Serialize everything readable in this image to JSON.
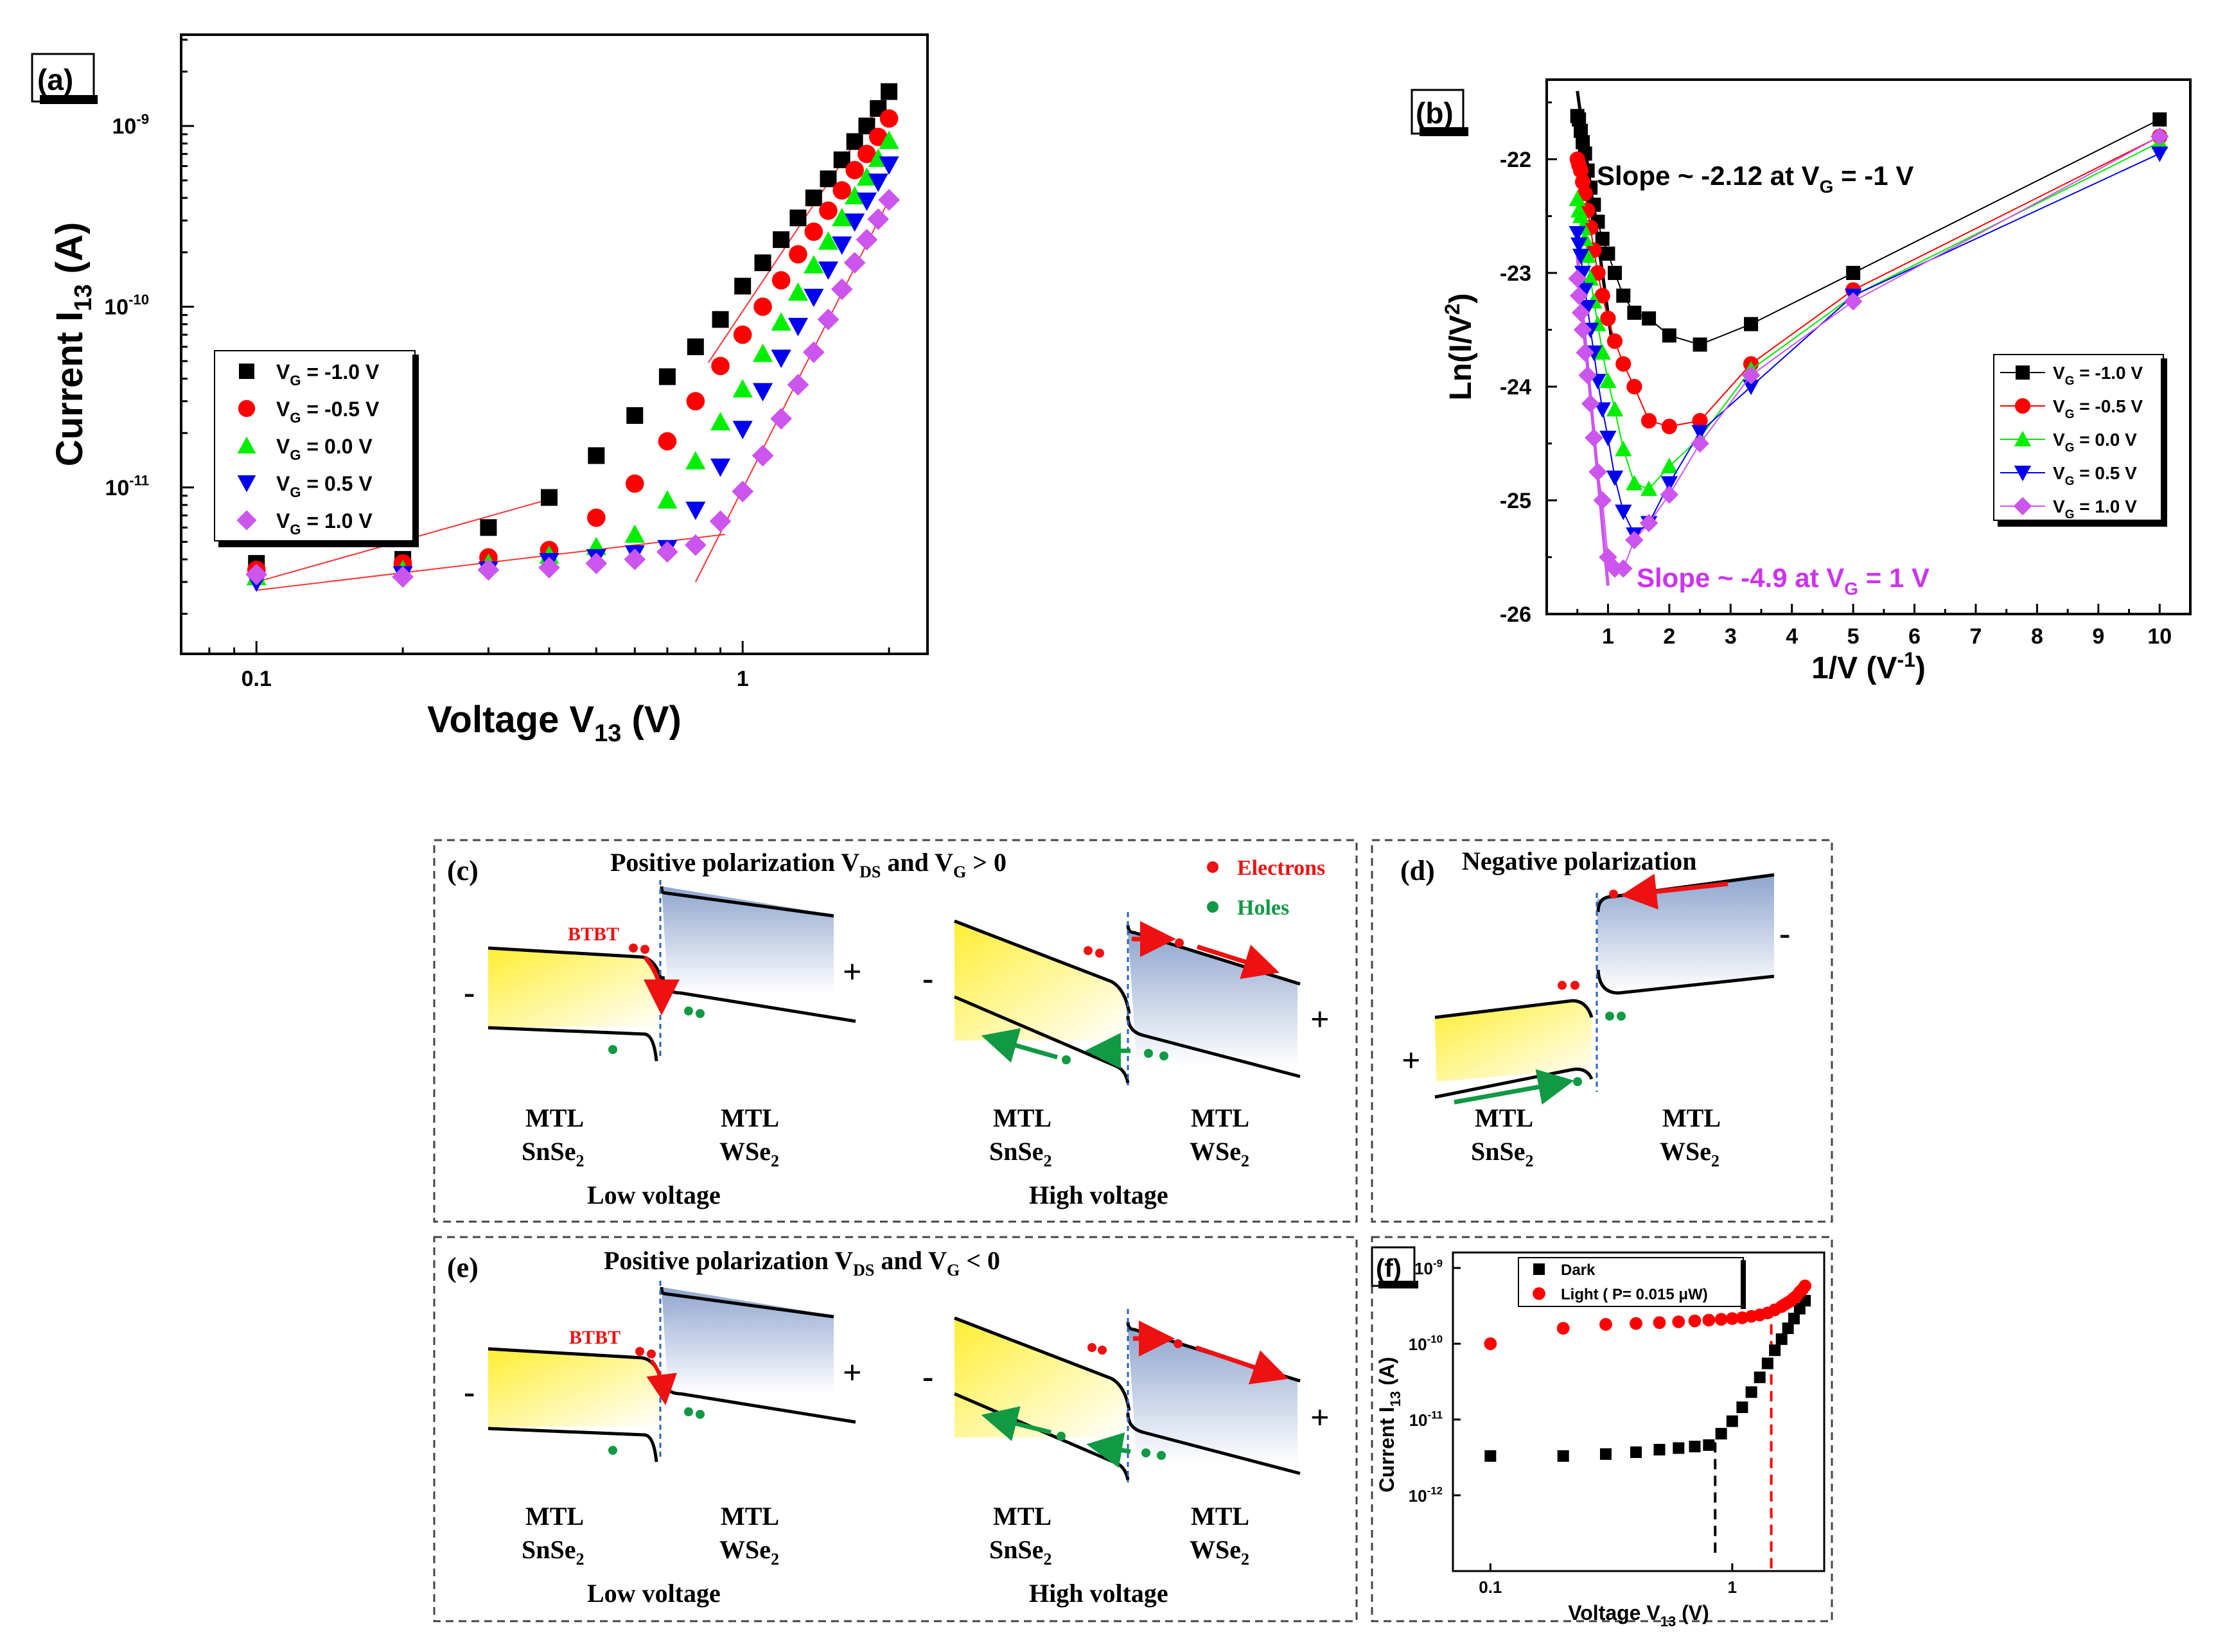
{
  "panel_labels": {
    "a": "(a)",
    "b": "(b)",
    "c": "(c)",
    "d": "(d)",
    "e": "(e)",
    "f": "(f)"
  },
  "colors": {
    "m10": "#000000",
    "m05": "#ff0000",
    "p00": "#00ee00",
    "p05": "#0000ee",
    "p10": "#cc55ee"
  },
  "chart_data": [
    {
      "id": "a",
      "type": "scatter",
      "xscale": "log",
      "yscale": "log",
      "xlabel_main": "Voltage V",
      "xlabel_sub": "13",
      "xlabel_unit": " (V)",
      "ylabel_main": "Current I",
      "ylabel_sub": "13",
      "ylabel_unit": " (A)",
      "xlim": [
        0.07,
        2.4
      ],
      "ylim": [
        1.2e-12,
        3.2e-09
      ],
      "xticks": [
        {
          "v": 0.1,
          "label": "0.1"
        },
        {
          "v": 1,
          "label": "1"
        }
      ],
      "yticks": [
        {
          "v": 1e-11,
          "label": "10-11"
        },
        {
          "v": 1e-10,
          "label": "10-10"
        },
        {
          "v": 1e-09,
          "label": "10-9"
        }
      ],
      "x": [
        0.1,
        0.2,
        0.3,
        0.4,
        0.5,
        0.6,
        0.7,
        0.8,
        0.9,
        1.0,
        1.1,
        1.2,
        1.3,
        1.4,
        1.5,
        1.6,
        1.7,
        1.8,
        1.9,
        2.0
      ],
      "series": [
        {
          "name": "V_G = -1.0 V",
          "label": "V",
          "sub": "G",
          "val": " = -1.0 V",
          "marker": "square",
          "color": "#000000",
          "values": [
            3.8e-12,
            4e-12,
            6e-12,
            8.8e-12,
            1.5e-11,
            2.5e-11,
            4.1e-11,
            6e-11,
            8.5e-11,
            1.3e-10,
            1.75e-10,
            2.35e-10,
            3.1e-10,
            4e-10,
            5.1e-10,
            6.5e-10,
            8.2e-10,
            1e-09,
            1.25e-09,
            1.55e-09
          ]
        },
        {
          "name": "V_G = -0.5 V",
          "label": "V",
          "sub": "G",
          "val": " = -0.5 V",
          "marker": "circle",
          "color": "#ff0000",
          "values": [
            3.5e-12,
            3.8e-12,
            4.1e-12,
            4.5e-12,
            6.8e-12,
            1.05e-11,
            1.8e-11,
            3e-11,
            4.7e-11,
            7e-11,
            1e-10,
            1.4e-10,
            1.95e-10,
            2.6e-10,
            3.4e-10,
            4.4e-10,
            5.7e-10,
            7e-10,
            8.7e-10,
            1.1e-09
          ]
        },
        {
          "name": "V_G = 0.0 V",
          "label": "V",
          "sub": "G",
          "val": " =  0.0 V",
          "marker": "triangle-up",
          "color": "#00ee00",
          "values": [
            3.2e-12,
            3.5e-12,
            3.8e-12,
            4.2e-12,
            4.7e-12,
            5.5e-12,
            8.5e-12,
            1.4e-11,
            2.3e-11,
            3.5e-11,
            5.5e-11,
            8.2e-11,
            1.2e-10,
            1.7e-10,
            2.3e-10,
            3.1e-10,
            4.1e-10,
            5.2e-10,
            6.6e-10,
            8.3e-10
          ]
        },
        {
          "name": "V_G = 0.5 V",
          "label": "V",
          "sub": "G",
          "val": " =  0.5 V",
          "marker": "triangle-down",
          "color": "#0000ee",
          "values": [
            3e-12,
            3.3e-12,
            3.5e-12,
            3.9e-12,
            4.1e-12,
            4.3e-12,
            4.6e-12,
            7.5e-12,
            1.3e-11,
            2.1e-11,
            3.4e-11,
            5.2e-11,
            7.8e-11,
            1.13e-10,
            1.6e-10,
            2.2e-10,
            2.95e-10,
            3.85e-10,
            4.9e-10,
            6.1e-10
          ]
        },
        {
          "name": "V_G = 1.0 V",
          "label": "V",
          "sub": "G",
          "val": " =  1.0 V",
          "marker": "diamond",
          "color": "#cc55ee",
          "values": [
            3.3e-12,
            3.2e-12,
            3.5e-12,
            3.6e-12,
            3.8e-12,
            4e-12,
            4.4e-12,
            4.8e-12,
            6.5e-12,
            9.5e-12,
            1.5e-11,
            2.4e-11,
            3.7e-11,
            5.6e-11,
            8.5e-11,
            1.25e-10,
            1.75e-10,
            2.35e-10,
            3.05e-10,
            3.9e-10
          ]
        }
      ],
      "fit_lines": [
        [
          [
            0.1,
            3e-12
          ],
          [
            0.4,
            8.6e-12
          ]
        ],
        [
          [
            0.1,
            2.7e-12
          ],
          [
            0.92,
            5.5e-12
          ]
        ],
        [
          [
            0.85,
            4.9e-11
          ],
          [
            2.0,
            1.55e-09
          ]
        ],
        [
          [
            0.8,
            3e-12
          ],
          [
            2.0,
            3.9e-10
          ]
        ]
      ]
    },
    {
      "id": "b",
      "type": "line",
      "xlabel_main": "1/V (V",
      "xlabel_sup": "-1",
      "xlabel_unit": ")",
      "ylabel_main": "Ln(I/V",
      "ylabel_sup": "2",
      "ylabel_unit": ")",
      "xlim": [
        0,
        10.5
      ],
      "ylim": [
        -26,
        -21.3
      ],
      "xticks": [
        1,
        2,
        3,
        4,
        5,
        6,
        7,
        8,
        9,
        10
      ],
      "yticks": [
        -26,
        -25,
        -24,
        -23,
        -22
      ],
      "x": [
        10,
        5,
        3.333,
        2.5,
        2,
        1.667,
        1.429,
        1.25,
        1.111,
        1.0,
        0.909,
        0.833,
        0.769,
        0.714,
        0.667,
        0.625,
        0.588,
        0.556,
        0.526,
        0.5
      ],
      "series": [
        {
          "name": "V_G = -1.0 V",
          "label": "V",
          "sub": "G",
          "val": " = -1.0 V",
          "marker": "square",
          "color": "#000000",
          "values": [
            -21.65,
            -23.0,
            -23.45,
            -23.63,
            -23.55,
            -23.4,
            -23.35,
            -23.2,
            -23.0,
            -22.83,
            -22.7,
            -22.55,
            -22.4,
            -22.25,
            -22.1,
            -21.95,
            -21.85,
            -21.75,
            -21.65,
            -21.62
          ]
        },
        {
          "name": "V_G = -0.5 V",
          "label": "V",
          "sub": "G",
          "val": " = -0.5 V",
          "marker": "circle",
          "color": "#ff0000",
          "values": [
            -21.8,
            -23.15,
            -23.8,
            -24.3,
            -24.35,
            -24.3,
            -24.0,
            -23.8,
            -23.6,
            -23.4,
            -23.2,
            -23.0,
            -22.8,
            -22.6,
            -22.45,
            -22.3,
            -22.2,
            -22.1,
            -22.05,
            -22.0
          ]
        },
        {
          "name": "V_G = 0.0 V",
          "label": "V",
          "sub": "G",
          "val": " =  0.0 V",
          "marker": "triangle-up",
          "color": "#00ee00",
          "values": [
            -21.85,
            -23.2,
            -23.85,
            -24.45,
            -24.7,
            -24.9,
            -24.85,
            -24.55,
            -24.2,
            -23.95,
            -23.7,
            -23.45,
            -23.25,
            -23.05,
            -22.85,
            -22.7,
            -22.6,
            -22.5,
            -22.45,
            -22.35
          ]
        },
        {
          "name": "V_G = 0.5 V",
          "label": "V",
          "sub": "G",
          "val": " =  0.5 V",
          "marker": "triangle-down",
          "color": "#0000ee",
          "values": [
            -21.95,
            -23.2,
            -24.0,
            -24.4,
            -24.85,
            -25.2,
            -25.3,
            -25.1,
            -24.8,
            -24.45,
            -24.2,
            -23.95,
            -23.7,
            -23.5,
            -23.3,
            -23.15,
            -23.0,
            -22.85,
            -22.75,
            -22.65
          ]
        },
        {
          "name": "V_G = 1.0 V",
          "label": "V",
          "sub": "G",
          "val": " =  1.0 V",
          "marker": "diamond",
          "color": "#cc55ee",
          "values": [
            -21.8,
            -23.25,
            -23.9,
            -24.5,
            -24.95,
            -25.2,
            -25.35,
            -25.6,
            -25.6,
            -25.5,
            -25.0,
            -24.75,
            -24.45,
            -24.15,
            -23.9,
            -23.7,
            -23.5,
            -23.35,
            -23.2,
            -23.05
          ]
        }
      ],
      "slope_lines": [
        {
          "color": "#000000",
          "pts": [
            [
              0.5,
              -21.4
            ],
            [
              1.05,
              -23.55
            ]
          ]
        },
        {
          "color": "#cc55ee",
          "pts": [
            [
              0.5,
              -22.85
            ],
            [
              1.0,
              -25.75
            ]
          ]
        }
      ],
      "annotations": [
        {
          "text_main": "Slope ~ -2.12 at V",
          "sub": "G",
          "text_end": " = -1 V",
          "color": "#000000"
        },
        {
          "text_main": "Slope ~ -4.9 at V",
          "sub": "G",
          "text_end": " = 1 V",
          "color": "#cc33ee"
        }
      ]
    },
    {
      "id": "f",
      "type": "scatter",
      "xscale": "log",
      "yscale": "log",
      "xlabel_main": "Voltage V",
      "xlabel_sub": "13",
      "xlabel_unit": " (V)",
      "ylabel_main": "Current I",
      "ylabel_sub": "13",
      "ylabel_unit": " (A)",
      "xlim": [
        0.07,
        2.4
      ],
      "ylim": [
        1e-13,
        1.6e-09
      ],
      "xticks": [
        {
          "v": 0.1,
          "label": "0.1"
        },
        {
          "v": 1,
          "label": "1"
        }
      ],
      "yticks": [
        {
          "v": 1e-12,
          "label": "10-12"
        },
        {
          "v": 1e-11,
          "label": "10-11"
        },
        {
          "v": 1e-10,
          "label": "10-10"
        },
        {
          "v": 1e-09,
          "label": "10-9"
        }
      ],
      "series": [
        {
          "name": "Dark",
          "label": "Dark",
          "marker": "square",
          "color": "#000000",
          "x": [
            0.1,
            0.2,
            0.3,
            0.4,
            0.5,
            0.6,
            0.7,
            0.8,
            0.9,
            1.0,
            1.1,
            1.2,
            1.3,
            1.4,
            1.5,
            1.6,
            1.7,
            1.8,
            1.9,
            2.0
          ],
          "values": [
            3.3e-12,
            3.3e-12,
            3.5e-12,
            3.7e-12,
            4e-12,
            4.2e-12,
            4.4e-12,
            4.6e-12,
            6.5e-12,
            9.5e-12,
            1.45e-11,
            2.3e-11,
            3.6e-11,
            5.5e-11,
            8.2e-11,
            1.15e-10,
            1.6e-10,
            2.15e-10,
            2.9e-10,
            3.7e-10
          ]
        },
        {
          "name": "Light ( P= 0.015 μW)",
          "label": "Light ( P= 0.015 μW)",
          "marker": "circle",
          "color": "#ff0000",
          "x": [
            0.1,
            0.2,
            0.3,
            0.4,
            0.5,
            0.6,
            0.7,
            0.8,
            0.9,
            1.0,
            1.1,
            1.2,
            1.3,
            1.4,
            1.5,
            1.6,
            1.7,
            1.8,
            1.9,
            2.0,
            1.95,
            1.85,
            1.75,
            1.65
          ],
          "values": [
            1e-10,
            1.6e-10,
            1.8e-10,
            1.85e-10,
            1.9e-10,
            1.95e-10,
            2e-10,
            2.05e-10,
            2.1e-10,
            2.15e-10,
            2.2e-10,
            2.3e-10,
            2.4e-10,
            2.55e-10,
            2.8e-10,
            3.1e-10,
            3.5e-10,
            4e-10,
            4.8e-10,
            5.8e-10,
            5.2e-10,
            4.3e-10,
            3.7e-10,
            3.3e-10
          ]
        }
      ],
      "vlines": [
        {
          "x": 0.85,
          "color": "#000000",
          "from": 1.5e-13,
          "to": 5e-12
        },
        {
          "x": 1.45,
          "color": "#ff0000",
          "from": 1e-13,
          "to": 3e-10
        }
      ]
    }
  ],
  "diagrams": {
    "c": {
      "title_main": "Positive polarization V",
      "title_sub1": "DS",
      "title_mid": " and V",
      "title_sub2": "G",
      "title_end": " > 0",
      "legend_electrons": "Electrons",
      "legend_holes": "Holes",
      "btbt": "BTBT",
      "low": "Low voltage",
      "high": "High voltage"
    },
    "d": {
      "title": "Negative polarization"
    },
    "e": {
      "title_main": "Positive polarization V",
      "title_sub1": "DS",
      "title_mid": " and V",
      "title_sub2": "G",
      "title_end": " < 0",
      "btbt": "BTBT",
      "low": "Low voltage",
      "high": "High voltage"
    },
    "labels": {
      "mtl": "MTL",
      "snse": "SnSe",
      "wse": "WSe",
      "two": "2",
      "plus": "+",
      "minus": "-"
    }
  }
}
